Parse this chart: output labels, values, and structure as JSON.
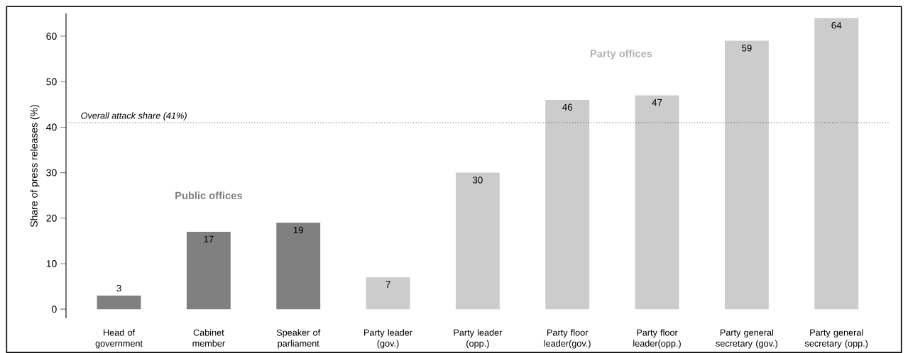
{
  "chart_data": {
    "type": "bar",
    "ylabel": "Share of press releases (%)",
    "categories": [
      "Head of government",
      "Cabinet member",
      "Speaker of parliament",
      "Party leader (gov.)",
      "Party leader (opp.)",
      "Party floor leader(gov.)",
      "Party floor leader(opp.)",
      "Party general secretary (gov.)",
      "Party general secretary (opp.)"
    ],
    "values": [
      3,
      17,
      19,
      7,
      30,
      46,
      47,
      59,
      64
    ],
    "colors": [
      "#808080",
      "#808080",
      "#808080",
      "#cccccc",
      "#cccccc",
      "#cccccc",
      "#cccccc",
      "#cccccc",
      "#cccccc"
    ],
    "data_labels": true,
    "ylim": [
      -2,
      65
    ],
    "yticks": [
      0,
      10,
      20,
      30,
      40,
      50,
      60
    ],
    "ref_lines": [
      {
        "axis": "y",
        "value": 41,
        "label": "Overall attack share (41%)",
        "line_style": "dotted",
        "color": "#555555"
      }
    ],
    "annotations": [
      "Public offices",
      "Party offices"
    ]
  }
}
